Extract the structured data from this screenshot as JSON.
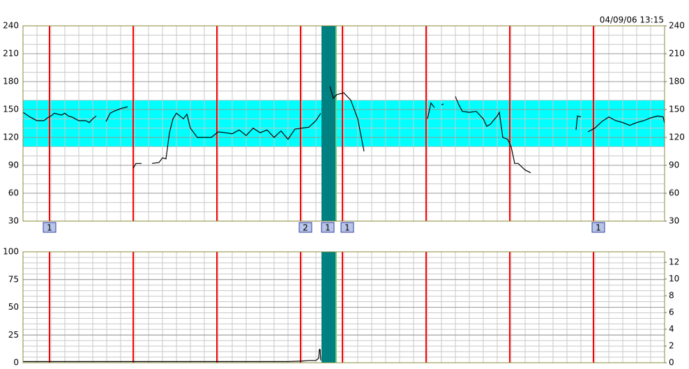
{
  "chart_data": [
    {
      "type": "line",
      "title": "04/09/06 13:15",
      "xlim": [
        0,
        92
      ],
      "ylim": [
        30,
        240
      ],
      "yticks": [
        30,
        60,
        90,
        120,
        150,
        180,
        210,
        240
      ],
      "y2lim": [
        30,
        240
      ],
      "y2ticks": [
        30,
        60,
        90,
        120,
        150,
        180,
        210,
        240
      ],
      "grid": true,
      "xgrid_step": 2,
      "ygrid_step": 10,
      "frame_color": "#8a8a3a",
      "normal_range": [
        110,
        160
      ],
      "normal_range_color": "#00ffff",
      "event_lines": [
        3.8,
        15.8,
        27.8,
        39.8,
        45.8,
        57.8,
        69.8,
        81.8
      ],
      "event_color": "#ff0000",
      "band_x": [
        42.8,
        44.8
      ],
      "band_color": "#008080",
      "markers": [
        {
          "x": 3.8,
          "label": "1"
        },
        {
          "x": 40.5,
          "label": "2"
        },
        {
          "x": 43.7,
          "label": "1"
        },
        {
          "x": 46.5,
          "label": "1"
        },
        {
          "x": 82.5,
          "label": "1"
        }
      ],
      "x": [
        0,
        1,
        2,
        3,
        3.5,
        4,
        4.5,
        5,
        5.5,
        6,
        6.5,
        7,
        8,
        9,
        9.5,
        10,
        10.5,
        11.2,
        11.9,
        12.5,
        13,
        14,
        15,
        15.5,
        15.8,
        16.2,
        17,
        17.5,
        18.5,
        19.5,
        20,
        20.5,
        21,
        21.5,
        22,
        22.5,
        23,
        23.5,
        24,
        25,
        26,
        27,
        28,
        29,
        30,
        31,
        32,
        33,
        34,
        35,
        36,
        37,
        38,
        39,
        40,
        41,
        42,
        42.7,
        43.5,
        44,
        44.5,
        45,
        46,
        47,
        48,
        48.9,
        53,
        58,
        58.5,
        59,
        59.5,
        60,
        60.3,
        61,
        62,
        62.5,
        63,
        64,
        65,
        66,
        66.5,
        67,
        68,
        68.3,
        68.8,
        69.5,
        70,
        70.5,
        71,
        72,
        72.8,
        76,
        79.3,
        79.5,
        80,
        80.5,
        81,
        82,
        83,
        84,
        85,
        86,
        87,
        88,
        89,
        90,
        91,
        91.8,
        92
      ],
      "series": [
        {
          "color": "#000000",
          "values": [
            147,
            142,
            138,
            138,
            141,
            143,
            146,
            145,
            144,
            146,
            143,
            142,
            138,
            138,
            136,
            140,
            143,
            null,
            137,
            146,
            148,
            151,
            153,
            null,
            87,
            92,
            92,
            null,
            92,
            93,
            98,
            97,
            125,
            140,
            146,
            143,
            140,
            145,
            130,
            120,
            120,
            120,
            126,
            125,
            124,
            128,
            122,
            130,
            125,
            128,
            120,
            127,
            118,
            129,
            130,
            131,
            138,
            146,
            null,
            175,
            162,
            166,
            168,
            160,
            140,
            105,
            null,
            140,
            157,
            152,
            null,
            155,
            156,
            null,
            164,
            155,
            148,
            147,
            148,
            140,
            132,
            134,
            143,
            147,
            120,
            118,
            110,
            92,
            92,
            85,
            82,
            null,
            128,
            143,
            142,
            null,
            126,
            130,
            137,
            142,
            138,
            136,
            133,
            136,
            138,
            141,
            143,
            142,
            135
          ]
        }
      ]
    },
    {
      "type": "line",
      "xlim": [
        0,
        92
      ],
      "ylim": [
        0,
        100
      ],
      "yticks": [
        0,
        25,
        50,
        75,
        100
      ],
      "y2lim": [
        0,
        13.25
      ],
      "y2ticks": [
        0,
        2,
        4,
        6,
        8,
        10,
        12
      ],
      "grid": true,
      "xgrid_step": 2,
      "ygrid_step": 5,
      "frame_color": "#8a8a3a",
      "event_lines": [
        3.8,
        15.8,
        27.8,
        39.8,
        45.8,
        57.8,
        69.8,
        81.8
      ],
      "event_color": "#ff0000",
      "band_x": [
        42.8,
        44.8
      ],
      "band_color": "#008080",
      "x": [
        0,
        10,
        20,
        30,
        38,
        40,
        41,
        42,
        42.4,
        42.5,
        42.6,
        42.7
      ],
      "series": [
        {
          "color": "#000000",
          "values": [
            1,
            1,
            1,
            1,
            1,
            1.5,
            2,
            2,
            4,
            12,
            12,
            2
          ]
        }
      ]
    }
  ]
}
